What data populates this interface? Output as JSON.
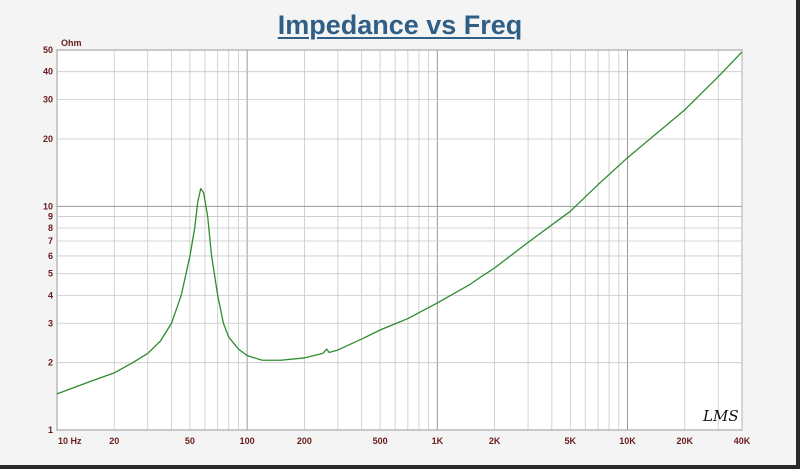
{
  "chart_data": {
    "type": "line",
    "title": "Impedance vs Freq",
    "ylabel": "Ohm",
    "xlabel": "",
    "xscale": "log",
    "yscale": "log",
    "xlim": [
      10,
      40000
    ],
    "ylim": [
      1,
      50
    ],
    "grid": true,
    "x_ticks": [
      {
        "value": 10,
        "label": "10  Hz"
      },
      {
        "value": 20,
        "label": "20"
      },
      {
        "value": 50,
        "label": "50"
      },
      {
        "value": 100,
        "label": "100"
      },
      {
        "value": 200,
        "label": "200"
      },
      {
        "value": 500,
        "label": "500"
      },
      {
        "value": 1000,
        "label": "1K"
      },
      {
        "value": 2000,
        "label": "2K"
      },
      {
        "value": 5000,
        "label": "5K"
      },
      {
        "value": 10000,
        "label": "10K"
      },
      {
        "value": 20000,
        "label": "20K"
      },
      {
        "value": 40000,
        "label": "40K"
      }
    ],
    "y_ticks": [
      {
        "value": 1,
        "label": "1"
      },
      {
        "value": 2,
        "label": "2"
      },
      {
        "value": 3,
        "label": "3"
      },
      {
        "value": 4,
        "label": "4"
      },
      {
        "value": 5,
        "label": "5"
      },
      {
        "value": 6,
        "label": "6"
      },
      {
        "value": 7,
        "label": "7"
      },
      {
        "value": 8,
        "label": "8"
      },
      {
        "value": 9,
        "label": "9"
      },
      {
        "value": 10,
        "label": "10"
      },
      {
        "value": 20,
        "label": "20"
      },
      {
        "value": 30,
        "label": "30"
      },
      {
        "value": 40,
        "label": "40"
      },
      {
        "value": 50,
        "label": "50"
      }
    ],
    "series": [
      {
        "color": "#2e8b2e",
        "x": [
          10,
          15,
          20,
          25,
          30,
          35,
          40,
          45,
          50,
          53,
          55,
          57,
          59,
          62,
          65,
          70,
          75,
          80,
          90,
          100,
          120,
          150,
          200,
          250,
          262,
          270,
          300,
          400,
          500,
          700,
          1000,
          1500,
          1700,
          1800,
          2000,
          3000,
          5000,
          7000,
          10000,
          15000,
          20000,
          30000,
          40000
        ],
        "y": [
          1.45,
          1.65,
          1.8,
          2.0,
          2.2,
          2.5,
          3.0,
          4.0,
          6.0,
          8.0,
          10.5,
          12.0,
          11.5,
          9.0,
          6.0,
          4.0,
          3.0,
          2.6,
          2.3,
          2.15,
          2.05,
          2.05,
          2.1,
          2.2,
          2.3,
          2.22,
          2.28,
          2.55,
          2.8,
          3.15,
          3.7,
          4.5,
          4.85,
          5.0,
          5.3,
          6.9,
          9.5,
          12.5,
          16.5,
          22.0,
          27.0,
          38.0,
          49.0
        ]
      }
    ]
  },
  "logo_text": "LMS"
}
